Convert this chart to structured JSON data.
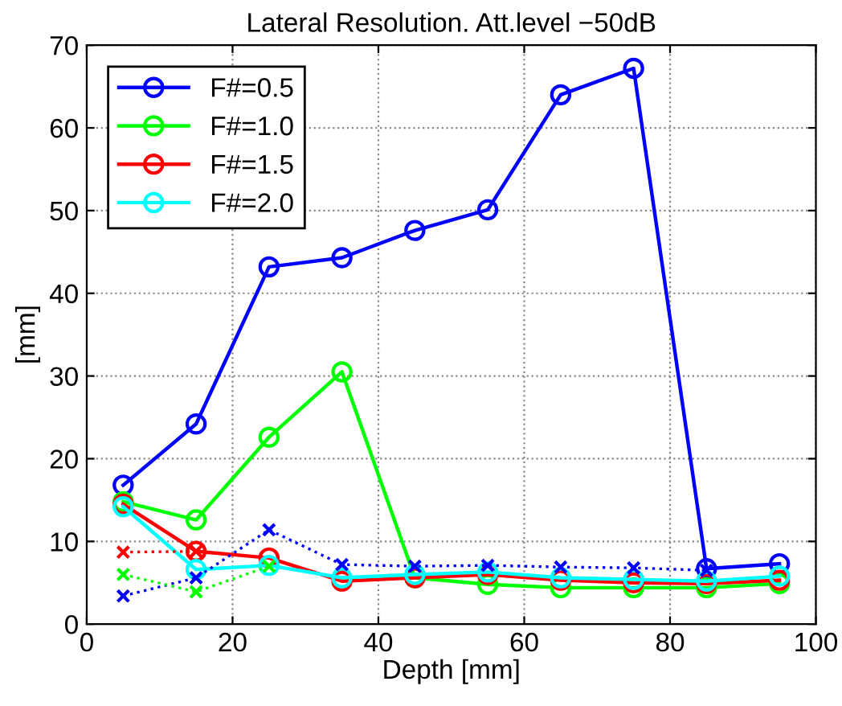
{
  "chart_data": {
    "type": "line",
    "title": "Lateral Resolution. Att.level −50dB",
    "xlabel": "Depth [mm]",
    "ylabel": "[mm]",
    "x": [
      5,
      15,
      25,
      35,
      45,
      55,
      65,
      75,
      85,
      95
    ],
    "series": [
      {
        "name": "F#=0.5",
        "color": "#0000ff",
        "marker": "circle",
        "line_style": "solid",
        "values": [
          16.8,
          24.2,
          43.2,
          44.3,
          47.6,
          50.1,
          64.0,
          67.2,
          6.7,
          7.3
        ]
      },
      {
        "name": "F#=1.0",
        "color": "#00ff00",
        "marker": "circle",
        "line_style": "solid",
        "values": [
          14.8,
          12.6,
          22.6,
          30.5,
          5.6,
          4.8,
          4.4,
          4.4,
          4.4,
          4.9
        ]
      },
      {
        "name": "F#=1.5",
        "color": "#ff0000",
        "marker": "circle",
        "line_style": "solid",
        "values": [
          14.5,
          8.8,
          8.0,
          5.2,
          5.6,
          6.0,
          5.3,
          5.0,
          4.9,
          5.3
        ]
      },
      {
        "name": "F#=2.0",
        "color": "#00ffff",
        "marker": "circle",
        "line_style": "solid",
        "values": [
          14.2,
          6.6,
          7.1,
          5.6,
          6.0,
          6.3,
          5.6,
          5.4,
          5.2,
          5.8
        ]
      },
      {
        "color": "#0000ff",
        "marker": "cross",
        "line_style": "dotted",
        "values": [
          3.4,
          5.6,
          11.4,
          7.2,
          7.0,
          7.1,
          6.9,
          6.8,
          6.5,
          null
        ]
      },
      {
        "color": "#00ff00",
        "marker": "cross",
        "line_style": "dotted",
        "values": [
          6.0,
          3.9,
          7.0,
          null,
          null,
          null,
          null,
          null,
          null,
          null
        ]
      },
      {
        "color": "#ff0000",
        "marker": "cross",
        "line_style": "dotted",
        "values": [
          8.7,
          8.8,
          null,
          null,
          null,
          null,
          null,
          null,
          null,
          null
        ]
      }
    ],
    "xlim": [
      0,
      100
    ],
    "xticks": [
      0,
      20,
      40,
      60,
      80,
      100
    ],
    "ylim": [
      0,
      70
    ],
    "yticks": [
      0,
      10,
      20,
      30,
      40,
      50,
      60,
      70
    ],
    "grid": true,
    "legend": "top left"
  }
}
